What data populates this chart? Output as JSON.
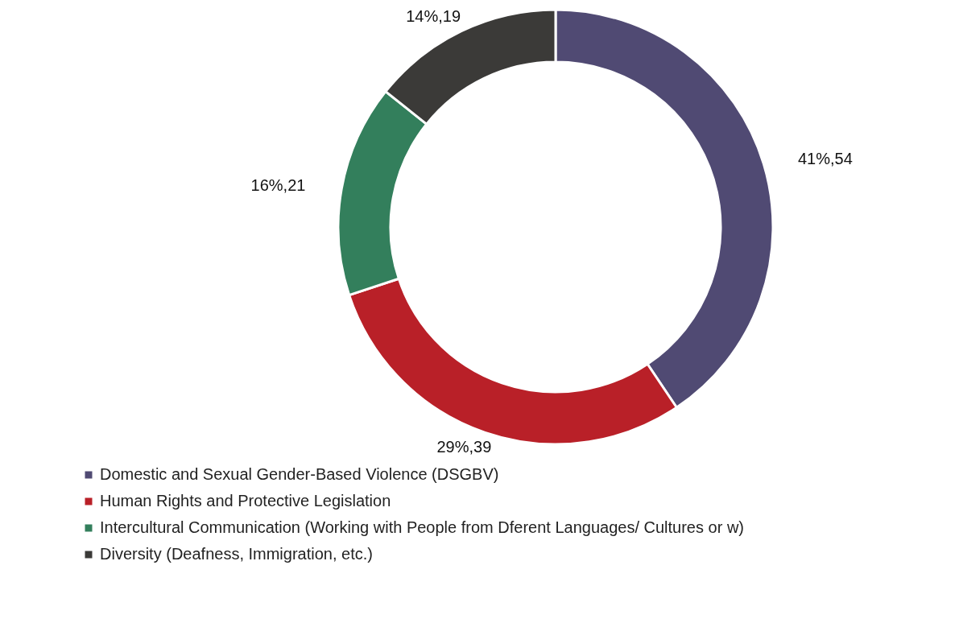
{
  "chart_data": {
    "type": "donut",
    "categories": [
      "Domestic and Sexual Gender-Based Violence (DSGBV)",
      "Human Rights and Protective Legislation",
      "Intercultural Communication (Working with People from Dferent Languages/ Cultures or w)",
      "Diversity (Deafness, Immigration, etc.)"
    ],
    "values": [
      54,
      39,
      21,
      19
    ],
    "colors": [
      "#504a73",
      "#b92028",
      "#337f5c",
      "#3b3a38"
    ],
    "value_labels": [
      "41%,54",
      "29%,39",
      "16%,21",
      "14%,19"
    ],
    "legend": "bottom left"
  }
}
